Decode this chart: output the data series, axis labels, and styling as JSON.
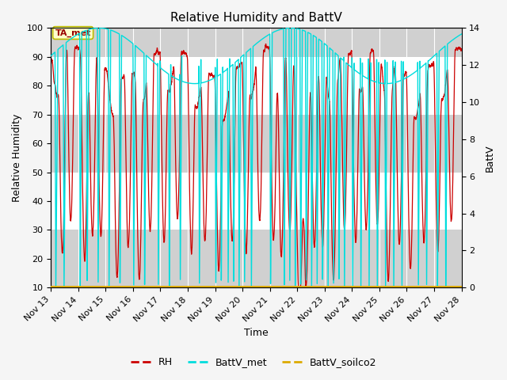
{
  "title": "Relative Humidity and BattV",
  "xlabel": "Time",
  "ylabel_left": "Relative Humidity",
  "ylabel_right": "BattV",
  "ylim_left": [
    10,
    100
  ],
  "ylim_right": [
    0,
    14
  ],
  "x_start": 13,
  "x_end": 28,
  "x_ticks": [
    13,
    14,
    15,
    16,
    17,
    18,
    19,
    20,
    21,
    22,
    23,
    24,
    25,
    26,
    27,
    28
  ],
  "x_tick_labels": [
    "Nov 13",
    "Nov 14",
    "Nov 15",
    "Nov 16",
    "Nov 17",
    "Nov 18",
    "Nov 19",
    "Nov 20",
    "Nov 21",
    "Nov 22",
    "Nov 23",
    "Nov 24",
    "Nov 25",
    "Nov 26",
    "Nov 27",
    "Nov 28"
  ],
  "rh_color": "#cc0000",
  "battv_met_color": "#00dddd",
  "battv_soilco2_color": "#ddaa00",
  "plot_bg_color": "#e8e8e8",
  "stripe_light": "#e8e8e8",
  "stripe_dark": "#d0d0d0",
  "fig_bg_color": "#f5f5f5",
  "annotation_text": "TA_met",
  "annotation_bg": "#ffffcc",
  "annotation_border": "#bbbb00",
  "title_fontsize": 11,
  "tick_fontsize": 8,
  "label_fontsize": 9,
  "legend_fontsize": 9
}
